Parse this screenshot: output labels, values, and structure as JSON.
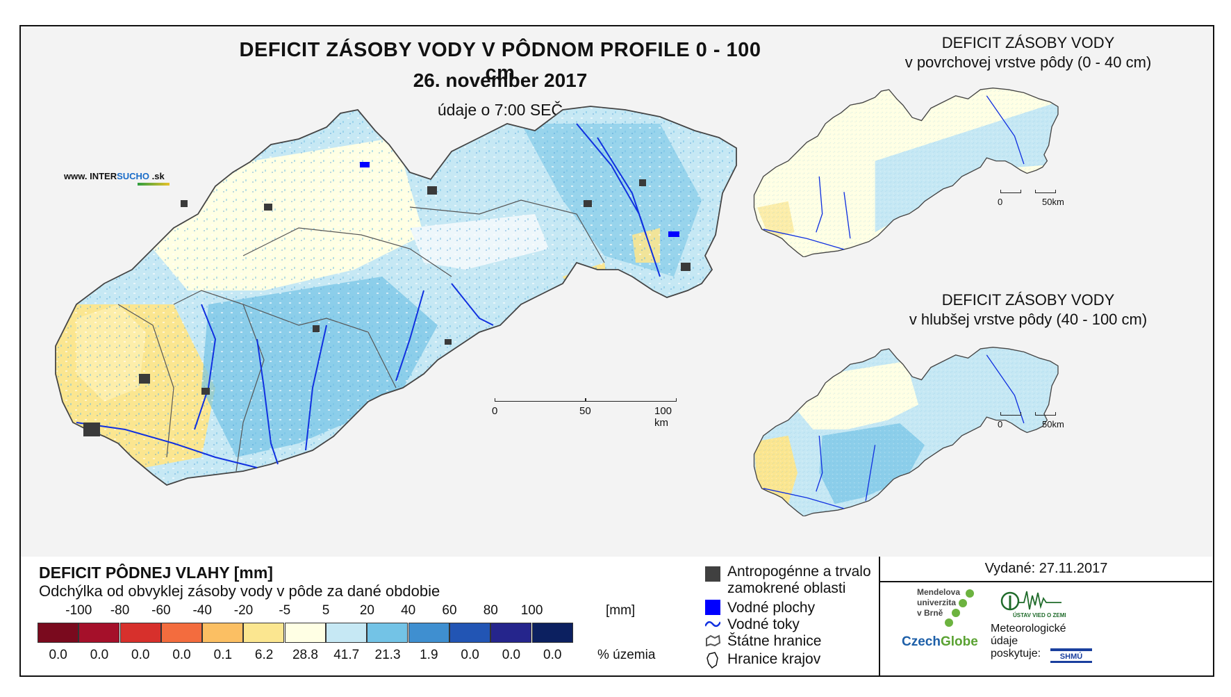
{
  "header": {
    "title": "DEFICIT ZÁSOBY VODY V PÔDNOM PROFILE 0 - 100 cm",
    "date": "26. november 2017",
    "time_note": "údaje o 7:00 SEČ"
  },
  "brand": {
    "prefix": "www. INTER",
    "accent": "SUCHO",
    "suffix": " .sk"
  },
  "main_scale": {
    "labels": [
      "0",
      "50",
      "100 km"
    ]
  },
  "inset_top": {
    "title_line1": "DEFICIT ZÁSOBY VODY",
    "title_line2": "v povrchovej vrstve pôdy (0 - 40 cm)",
    "scale": [
      "0",
      "50km"
    ]
  },
  "inset_bottom": {
    "title_line1": "DEFICIT ZÁSOBY VODY",
    "title_line2": "v hlubšej vrstve pôdy (40 - 100 cm)",
    "scale": [
      "0",
      "50km"
    ]
  },
  "legend": {
    "title": "DEFICIT PÔDNEJ VLAHY [mm]",
    "subtitle": "Odchýlka od obvyklej zásoby vody v pôde za dané obdobie",
    "class_labels": [
      "-100",
      "-80",
      "-60",
      "-40",
      "-20",
      "-5",
      "5",
      "20",
      "40",
      "60",
      "80",
      "100"
    ],
    "unit": "[mm]",
    "colors": [
      "#7a0a1e",
      "#a5102a",
      "#d7302c",
      "#f36c3e",
      "#fbbf63",
      "#fbe690",
      "#ffffe4",
      "#c6e8f4",
      "#73c3e6",
      "#3f8fd0",
      "#2255b4",
      "#25258c",
      "#0c2060"
    ],
    "percentages": [
      "0.0",
      "0.0",
      "0.0",
      "0.0",
      "0.1",
      "6.2",
      "28.8",
      "41.7",
      "21.3",
      "1.9",
      "0.0",
      "0.0",
      "0.0"
    ],
    "pct_unit": "% územia"
  },
  "symbols": [
    {
      "name": "Antropogénne a trvalo zamokrené oblasti",
      "line1": "Antropogénne a trvalo",
      "line2": "zamokrené oblasti",
      "color": "#404040"
    },
    {
      "name": "Vodné plochy",
      "line1": "Vodné plochy",
      "color": "#0000ff"
    },
    {
      "name": "Vodné toky",
      "line1": "Vodné toky",
      "color": "#1030e0"
    },
    {
      "name": "Štátne hranice",
      "line1": "Štátne hranice"
    },
    {
      "name": "Hranice krajov",
      "line1": "Hranice krajov"
    }
  ],
  "issued": "Vydané: 27.11.2017",
  "logos": {
    "mendel_line1": "Mendelova",
    "mendel_line2": "univerzita",
    "mendel_line3": "v Brně",
    "czechglobe_a": "Czech",
    "czechglobe_b": "Globe",
    "uvz": "ÚSTAV VIED O ZEMI",
    "meteo_line1": "Meteorologické",
    "meteo_line2": "údaje",
    "meteo_line3": "poskytuje:",
    "shmu": "SHMÚ"
  }
}
